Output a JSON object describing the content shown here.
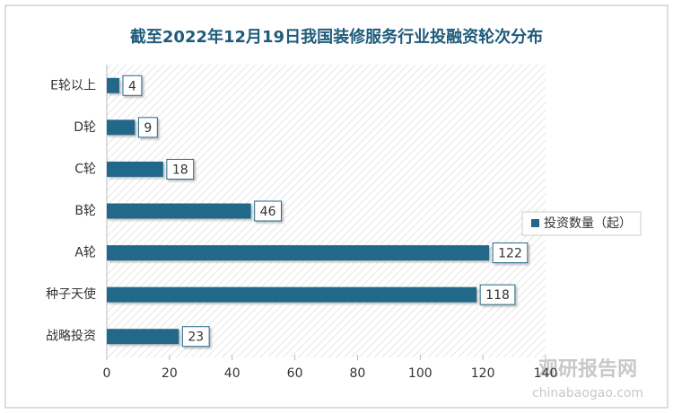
{
  "chart_data": {
    "type": "bar",
    "orientation": "horizontal",
    "title": "截至2022年12月19日我国装修服务行业投融资轮次分布",
    "categories": [
      "E轮以上",
      "D轮",
      "C轮",
      "B轮",
      "A轮",
      "种子天使",
      "战略投资"
    ],
    "series": [
      {
        "name": "投资数量（起）",
        "color": "#21688a",
        "values": [
          4,
          9,
          18,
          46,
          122,
          118,
          23
        ]
      }
    ],
    "xlim": [
      0,
      140
    ],
    "xticks": [
      0,
      20,
      40,
      60,
      80,
      100,
      120,
      140
    ],
    "legend": "right"
  },
  "watermark": {
    "name": "观研报告网",
    "url": "chinabaogao.com"
  }
}
